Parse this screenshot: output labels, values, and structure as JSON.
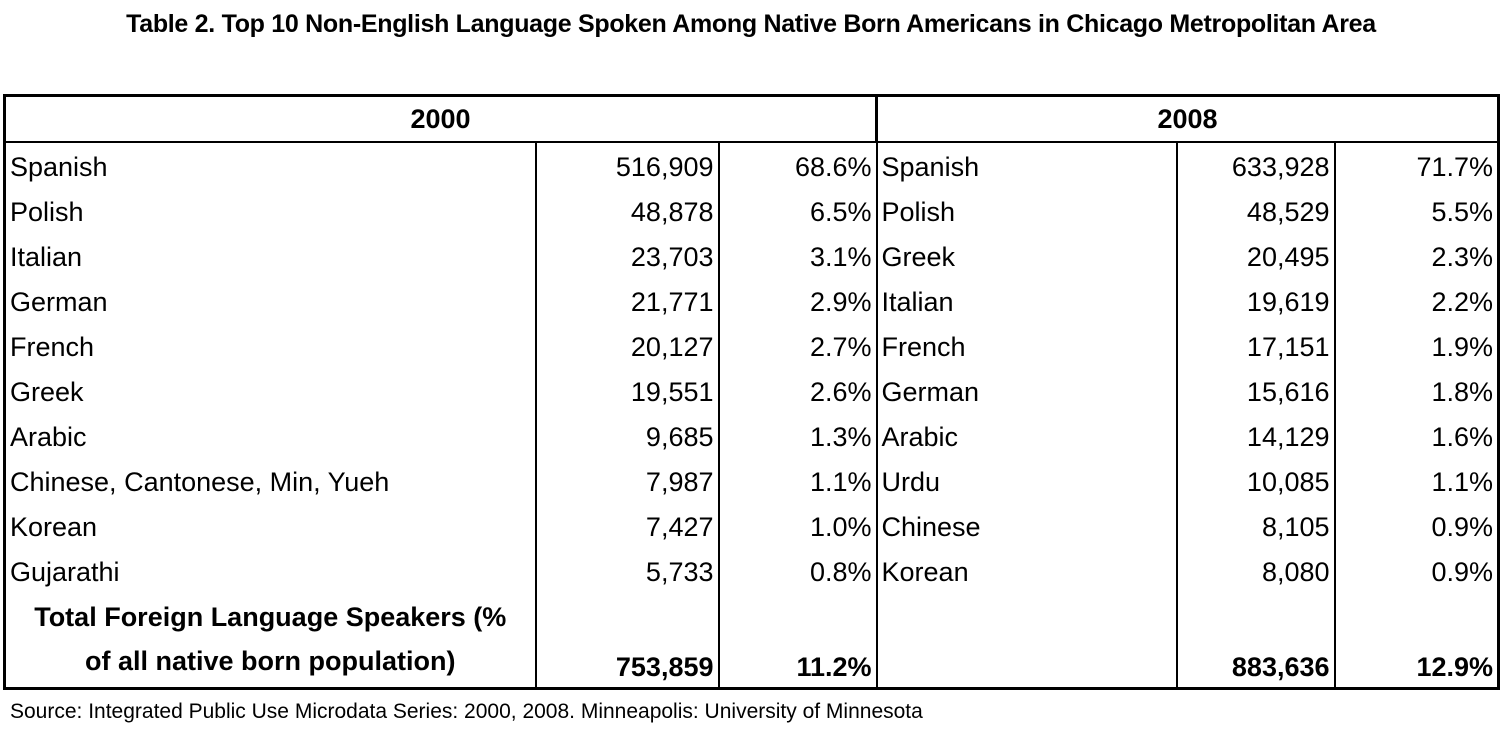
{
  "title": "Table 2. Top 10 Non-English Language Spoken Among Native Born Americans in Chicago Metropolitan Area",
  "headers": {
    "year_2000": "2000",
    "year_2008": "2008"
  },
  "rows": [
    {
      "lang_2000": "Spanish",
      "count_2000": "516,909",
      "pct_2000": "68.6%",
      "lang_2008": "Spanish",
      "count_2008": "633,928",
      "pct_2008": "71.7%"
    },
    {
      "lang_2000": "Polish",
      "count_2000": "48,878",
      "pct_2000": "6.5%",
      "lang_2008": "Polish",
      "count_2008": "48,529",
      "pct_2008": "5.5%"
    },
    {
      "lang_2000": "Italian",
      "count_2000": "23,703",
      "pct_2000": "3.1%",
      "lang_2008": "Greek",
      "count_2008": "20,495",
      "pct_2008": "2.3%"
    },
    {
      "lang_2000": "German",
      "count_2000": "21,771",
      "pct_2000": "2.9%",
      "lang_2008": "Italian",
      "count_2008": "19,619",
      "pct_2008": "2.2%"
    },
    {
      "lang_2000": "French",
      "count_2000": "20,127",
      "pct_2000": "2.7%",
      "lang_2008": "French",
      "count_2008": "17,151",
      "pct_2008": "1.9%"
    },
    {
      "lang_2000": "Greek",
      "count_2000": "19,551",
      "pct_2000": "2.6%",
      "lang_2008": "German",
      "count_2008": "15,616",
      "pct_2008": "1.8%"
    },
    {
      "lang_2000": "Arabic",
      "count_2000": "9,685",
      "pct_2000": "1.3%",
      "lang_2008": "Arabic",
      "count_2008": "14,129",
      "pct_2008": "1.6%"
    },
    {
      "lang_2000": "Chinese, Cantonese, Min, Yueh",
      "count_2000": "7,987",
      "pct_2000": "1.1%",
      "lang_2008": "Urdu",
      "count_2008": "10,085",
      "pct_2008": "1.1%"
    },
    {
      "lang_2000": "Korean",
      "count_2000": "7,427",
      "pct_2000": "1.0%",
      "lang_2008": "Chinese",
      "count_2008": "8,105",
      "pct_2008": "0.9%"
    },
    {
      "lang_2000": "Gujarathi",
      "count_2000": "5,733",
      "pct_2000": "0.8%",
      "lang_2008": "Korean",
      "count_2008": "8,080",
      "pct_2008": "0.9%"
    }
  ],
  "total": {
    "label_line1": "Total Foreign Language Speakers (%",
    "label_line2": "of all native born population)",
    "count_2000": "753,859",
    "pct_2000": "11.2%",
    "count_2008": "883,636",
    "pct_2008": "12.9%"
  },
  "source": "Source: Integrated Public Use Microdata Series: 2000, 2008. Minneapolis: University of Minnesota"
}
